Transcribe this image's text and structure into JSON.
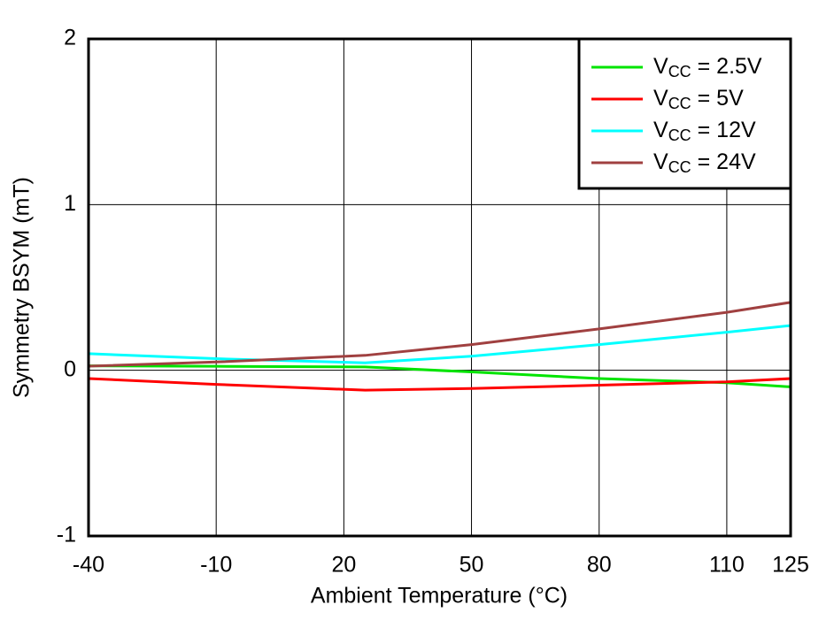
{
  "chart_data": {
    "type": "line",
    "x_label": "Ambient Temperature (°C)",
    "y_label": "Symmetry BSYM (mT)",
    "x": [
      -40,
      -10,
      25,
      50,
      80,
      110,
      125
    ],
    "series": [
      {
        "name": "VCC = 2.5V",
        "color": "#00e400",
        "values": [
          0.027,
          0.024,
          0.02,
          -0.01,
          -0.05,
          -0.075,
          -0.1
        ]
      },
      {
        "name": "VCC = 5V",
        "color": "#ff0000",
        "values": [
          -0.05,
          -0.085,
          -0.12,
          -0.11,
          -0.09,
          -0.07,
          -0.05
        ]
      },
      {
        "name": "VCC = 12V",
        "color": "#00ffff",
        "values": [
          0.1,
          0.07,
          0.045,
          0.085,
          0.155,
          0.23,
          0.27
        ]
      },
      {
        "name": "VCC = 24V",
        "color": "#a04040",
        "values": [
          0.025,
          0.05,
          0.09,
          0.155,
          0.25,
          0.35,
          0.41
        ]
      }
    ],
    "xlim": [
      -40,
      125
    ],
    "xticks": [
      -40,
      -10,
      20,
      50,
      80,
      110,
      125
    ],
    "ylim": [
      -1,
      2
    ],
    "yticks": [
      -1,
      0,
      1,
      2
    ],
    "grid": true,
    "legend": "upper right"
  }
}
